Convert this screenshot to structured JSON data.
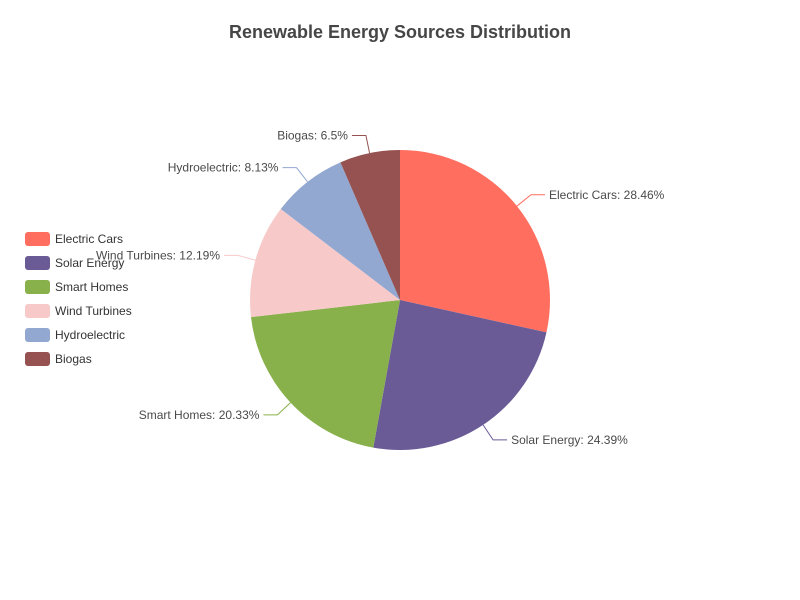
{
  "chart_data": {
    "type": "pie",
    "title": "Renewable Energy Sources Distribution",
    "legend_position": "left",
    "slices": [
      {
        "name": "Electric Cars",
        "value": 28.46,
        "label": "Electric Cars: 28.46%",
        "color": "#ff6e5f"
      },
      {
        "name": "Solar Energy",
        "value": 24.39,
        "label": "Solar Energy: 24.39%",
        "color": "#6a5b96"
      },
      {
        "name": "Smart Homes",
        "value": 20.33,
        "label": "Smart Homes: 20.33%",
        "color": "#88b04b"
      },
      {
        "name": "Wind Turbines",
        "value": 12.19,
        "label": "Wind Turbines: 12.19%",
        "color": "#f7cac9"
      },
      {
        "name": "Hydroelectric",
        "value": 8.13,
        "label": "Hydroelectric: 8.13%",
        "color": "#92a8d1"
      },
      {
        "name": "Biogas",
        "value": 6.5,
        "label": "Biogas: 6.5%",
        "color": "#955251"
      }
    ]
  }
}
